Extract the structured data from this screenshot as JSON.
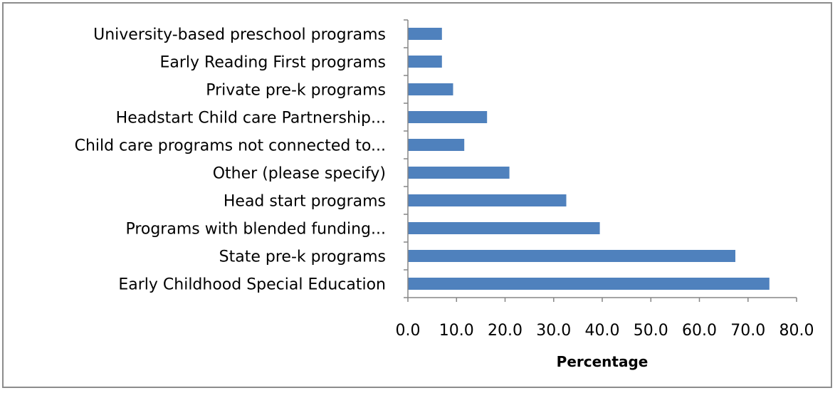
{
  "chart_data": {
    "type": "bar",
    "orientation": "horizontal",
    "categories": [
      "University-based preschool programs",
      "Early Reading First programs",
      "Private pre-k programs",
      "Headstart Child care Partnership...",
      "Child care programs not connected to...",
      "Other (please specify)",
      "Head start programs",
      "Programs with blended funding...",
      "State pre-k programs",
      "Early Childhood Special Education"
    ],
    "values": [
      7.0,
      7.0,
      9.3,
      16.3,
      11.6,
      20.9,
      32.6,
      39.5,
      67.4,
      74.4
    ],
    "xlabel": "Percentage",
    "ylabel": "",
    "xlim": [
      0,
      80
    ],
    "xticks": [
      0,
      10,
      20,
      30,
      40,
      50,
      60,
      70,
      80
    ],
    "tick_labels": [
      "0.0",
      "10.0",
      "20.0",
      "30.0",
      "40.0",
      "50.0",
      "60.0",
      "70.0",
      "80.0"
    ],
    "bar_color": "#4f81bd",
    "grid": false,
    "legend": "none"
  }
}
